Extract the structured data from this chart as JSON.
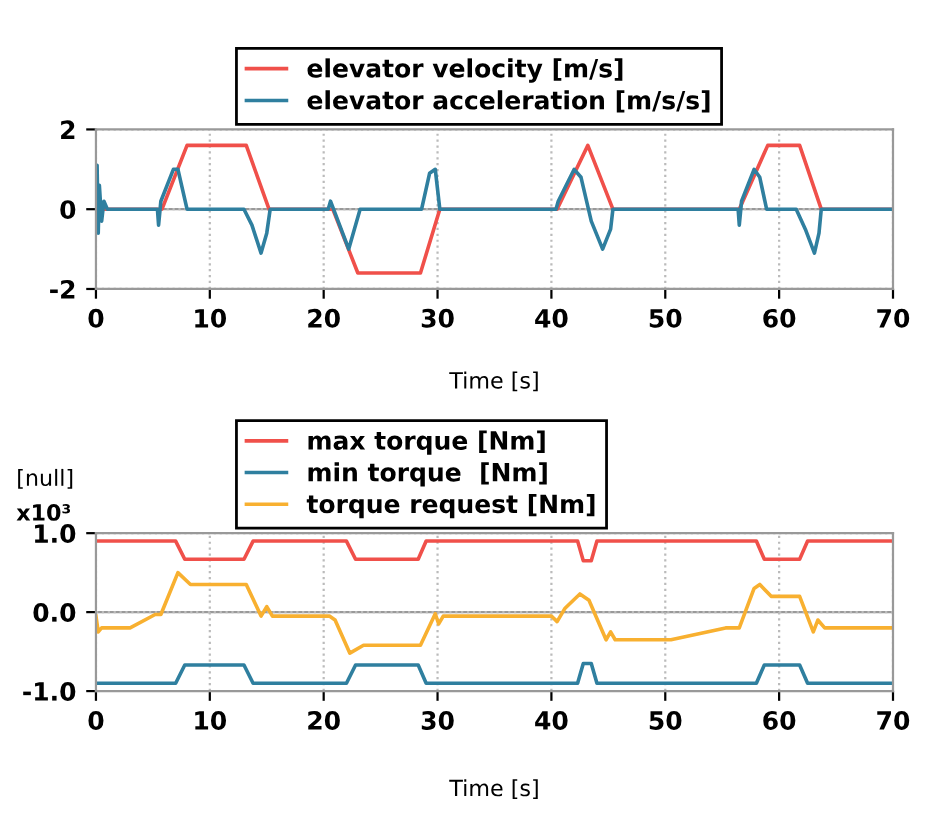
{
  "chart_data": [
    {
      "type": "line",
      "xlabel": "Time [s]",
      "xlim": [
        0,
        70
      ],
      "xticks": [
        0,
        10,
        20,
        30,
        40,
        50,
        60,
        70
      ],
      "ylim": [
        -2,
        2
      ],
      "yticks": [
        -2,
        0,
        2
      ],
      "grid": true,
      "legend": "top left",
      "line_style": "solid",
      "marker": "none",
      "series": [
        {
          "name": "elevator velocity [m/s]",
          "color": "#f0504a",
          "x": [
            0,
            5.8,
            8,
            13.2,
            15.2,
            20.8,
            23,
            28.5,
            30.2,
            40.5,
            43.2,
            45.4,
            56.5,
            59,
            61.8,
            63.7,
            70
          ],
          "values": [
            0,
            0,
            1.6,
            1.6,
            0,
            0,
            -1.6,
            -1.6,
            0,
            0,
            1.6,
            0,
            0,
            1.6,
            1.6,
            0,
            0
          ]
        },
        {
          "name": "elevator acceleration [m/s/s]",
          "color": "#2f7f9f",
          "x": [
            0,
            0.1,
            0.2,
            0.3,
            0.5,
            0.7,
            1,
            1.5,
            5.4,
            5.5,
            5.7,
            6.8,
            7.2,
            8,
            13,
            13.7,
            14.5,
            15,
            15.3,
            20.4,
            20.6,
            21,
            22.2,
            23.2,
            28.6,
            29.3,
            29.8,
            30.2,
            40.4,
            40.6,
            42,
            42.6,
            43.5,
            44.5,
            45.2,
            45.4,
            56.4,
            56.5,
            56.7,
            57.8,
            58.3,
            58.9,
            61.5,
            62.3,
            63.1,
            63.5,
            63.7,
            70
          ],
          "values": [
            0,
            1.1,
            -0.6,
            0.6,
            -0.3,
            0.2,
            0,
            0,
            0,
            -0.4,
            0.2,
            1.0,
            1.0,
            0,
            0,
            -0.4,
            -1.1,
            -0.6,
            0,
            0,
            0.2,
            -0.1,
            -1.0,
            0,
            0,
            0.9,
            1.0,
            0,
            0,
            0.2,
            1.0,
            0.8,
            -0.3,
            -1.0,
            -0.5,
            0,
            0,
            -0.4,
            0.2,
            1.0,
            0.8,
            0,
            0,
            -0.5,
            -1.1,
            -0.6,
            0,
            0
          ]
        }
      ]
    },
    {
      "type": "line",
      "xlabel": "Time [s]",
      "ylabel": "[null]",
      "annotations": [
        "x10³"
      ],
      "xlim": [
        0,
        70
      ],
      "xticks": [
        0,
        10,
        20,
        30,
        40,
        50,
        60,
        70
      ],
      "ylim": [
        -1.0,
        1.0
      ],
      "yticks": [
        {
          "value": -1.0,
          "label": "-1.0"
        },
        {
          "value": 0.0,
          "label": "0.0"
        },
        {
          "value": 1.0,
          "label": "1.0"
        }
      ],
      "grid": true,
      "legend": "top left",
      "line_style": "solid",
      "marker": "none",
      "series": [
        {
          "name": "max torque [Nm]",
          "color": "#f0504a",
          "x": [
            0,
            7,
            7.8,
            13,
            13.8,
            22,
            22.8,
            28.3,
            29,
            42.3,
            42.8,
            43.5,
            44,
            58,
            58.7,
            61.8,
            62.5,
            70
          ],
          "values": [
            0.9,
            0.9,
            0.67,
            0.67,
            0.9,
            0.9,
            0.67,
            0.67,
            0.9,
            0.9,
            0.65,
            0.65,
            0.9,
            0.9,
            0.67,
            0.67,
            0.9,
            0.9
          ]
        },
        {
          "name": "min torque  [Nm]",
          "color": "#2f7f9f",
          "x": [
            0,
            7,
            7.8,
            13,
            13.8,
            22,
            22.8,
            28.3,
            29,
            42.3,
            42.8,
            43.5,
            44,
            58,
            58.7,
            61.8,
            62.5,
            70
          ],
          "values": [
            -0.9,
            -0.9,
            -0.67,
            -0.67,
            -0.9,
            -0.9,
            -0.67,
            -0.67,
            -0.9,
            -0.9,
            -0.65,
            -0.65,
            -0.9,
            -0.9,
            -0.67,
            -0.67,
            -0.9,
            -0.9
          ]
        },
        {
          "name": "torque request [Nm]",
          "color": "#f8b030",
          "x": [
            0,
            0.2,
            0.5,
            3,
            5.2,
            5.7,
            7.2,
            8.3,
            13.2,
            14.5,
            15,
            15.5,
            20.5,
            21,
            22.3,
            23.5,
            28.5,
            29.8,
            30.1,
            30.5,
            40,
            40.5,
            41.2,
            42.5,
            43.3,
            44.8,
            45.2,
            45.6,
            50.5,
            55.3,
            56.5,
            57.8,
            58.3,
            59.3,
            61.8,
            63,
            63.4,
            64,
            70
          ],
          "values": [
            -0.05,
            -0.25,
            -0.2,
            -0.2,
            -0.03,
            -0.03,
            0.5,
            0.35,
            0.35,
            -0.05,
            0.07,
            -0.05,
            -0.05,
            -0.1,
            -0.52,
            -0.42,
            -0.42,
            -0.02,
            -0.15,
            -0.05,
            -0.05,
            -0.12,
            0.05,
            0.23,
            0.15,
            -0.35,
            -0.25,
            -0.35,
            -0.35,
            -0.2,
            -0.2,
            0.3,
            0.35,
            0.2,
            0.2,
            -0.25,
            -0.1,
            -0.2,
            -0.2
          ]
        }
      ]
    }
  ]
}
